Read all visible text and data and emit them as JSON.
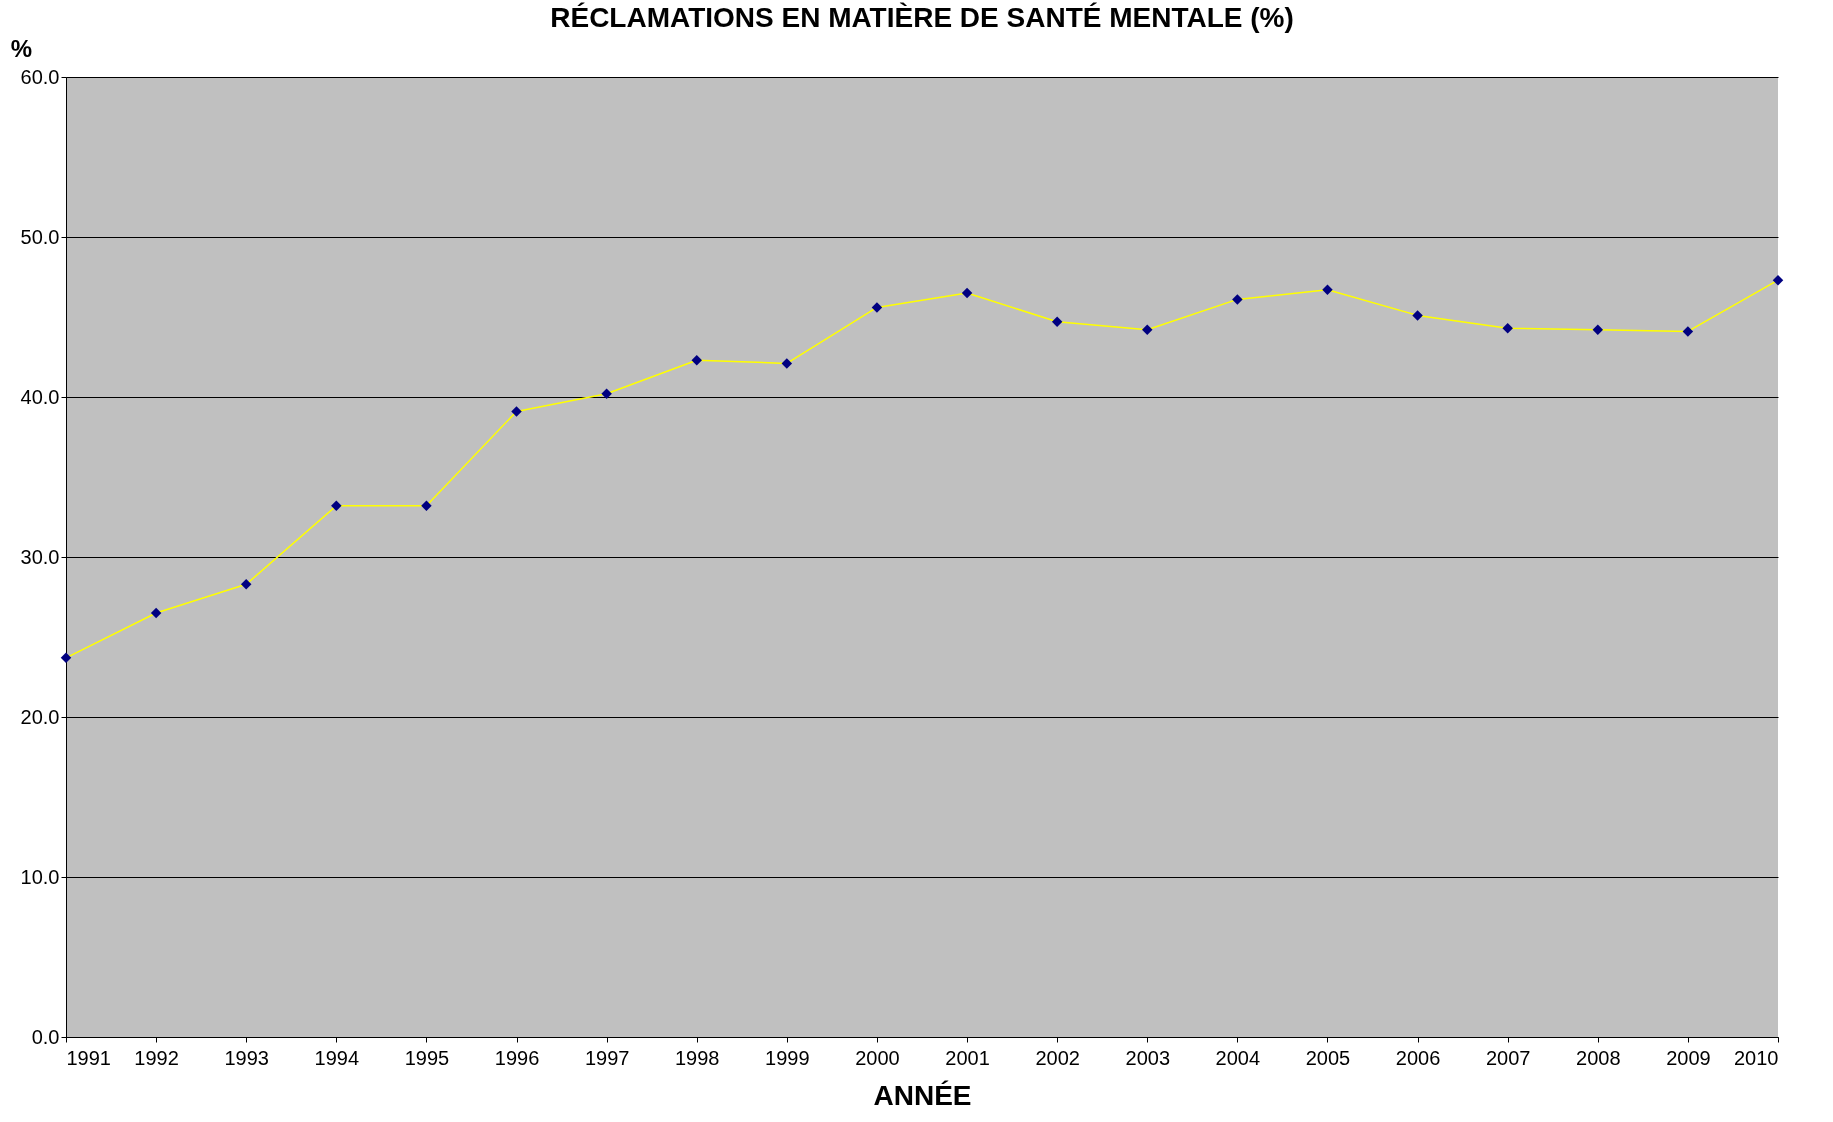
{
  "chart_data": {
    "type": "line",
    "title": "RÉCLAMATIONS EN MATIÈRE DE SANTÉ MENTALE (%)",
    "xlabel": "ANNÉE",
    "ylabel": "%",
    "x": [
      1991,
      1992,
      1993,
      1994,
      1995,
      1996,
      1997,
      1998,
      1999,
      2000,
      2001,
      2002,
      2003,
      2004,
      2005,
      2006,
      2007,
      2008,
      2009,
      2010
    ],
    "series": [
      {
        "color": "#ffff00",
        "values": [
          23.7,
          26.5,
          28.3,
          33.2,
          33.2,
          39.1,
          40.2,
          42.3,
          42.1,
          45.6,
          46.5,
          44.7,
          44.2,
          46.1,
          46.7,
          45.1,
          44.3,
          44.2,
          44.1,
          47.3
        ]
      }
    ],
    "xlim": [
      1991,
      2010
    ],
    "xticks": [
      1991,
      1992,
      1993,
      1994,
      1995,
      1996,
      1997,
      1998,
      1999,
      2000,
      2001,
      2002,
      2003,
      2004,
      2005,
      2006,
      2007,
      2008,
      2009,
      2010
    ],
    "ylim": [
      0,
      60
    ],
    "yticks": [
      {
        "value": 0,
        "label": "0.0"
      },
      {
        "value": 10,
        "label": "10.0"
      },
      {
        "value": 20,
        "label": "20.0"
      },
      {
        "value": 30,
        "label": "30.0"
      },
      {
        "value": 40,
        "label": "40.0"
      },
      {
        "value": 50,
        "label": "50.0"
      },
      {
        "value": 60,
        "label": "60.0"
      }
    ],
    "grid": "y",
    "marker": "diamond",
    "line_style": "solid"
  }
}
